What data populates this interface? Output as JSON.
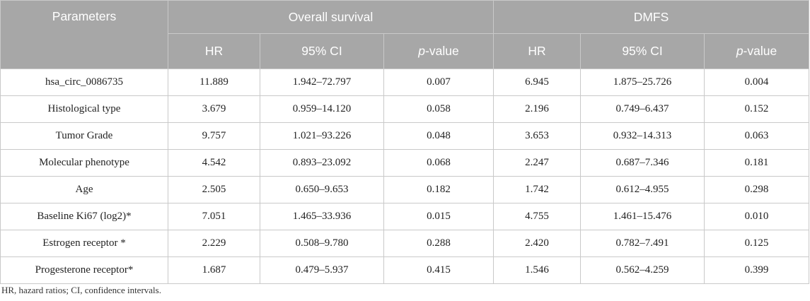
{
  "header": {
    "parameters": "Parameters",
    "group1": "Overall survival",
    "group2": "DMFS",
    "sub": {
      "hr": "HR",
      "ci": "95% CI",
      "p_italic": "p",
      "p_rest": "-value"
    }
  },
  "rows": [
    {
      "param": "hsa_circ_0086735",
      "os_hr": "11.889",
      "os_ci": "1.942–72.797",
      "os_p": "0.007",
      "d_hr": "6.945",
      "d_ci": "1.875–25.726",
      "d_p": "0.004"
    },
    {
      "param": "Histological type",
      "os_hr": "3.679",
      "os_ci": "0.959–14.120",
      "os_p": "0.058",
      "d_hr": "2.196",
      "d_ci": "0.749–6.437",
      "d_p": "0.152"
    },
    {
      "param": "Tumor Grade",
      "os_hr": "9.757",
      "os_ci": "1.021–93.226",
      "os_p": "0.048",
      "d_hr": "3.653",
      "d_ci": "0.932–14.313",
      "d_p": "0.063"
    },
    {
      "param": "Molecular phenotype",
      "os_hr": "4.542",
      "os_ci": "0.893–23.092",
      "os_p": "0.068",
      "d_hr": "2.247",
      "d_ci": "0.687–7.346",
      "d_p": "0.181"
    },
    {
      "param": "Age",
      "os_hr": "2.505",
      "os_ci": "0.650–9.653",
      "os_p": "0.182",
      "d_hr": "1.742",
      "d_ci": "0.612–4.955",
      "d_p": "0.298"
    },
    {
      "param": "Baseline Ki67 (log2)*",
      "os_hr": "7.051",
      "os_ci": "1.465–33.936",
      "os_p": "0.015",
      "d_hr": "4.755",
      "d_ci": "1.461–15.476",
      "d_p": "0.010"
    },
    {
      "param": "Estrogen receptor *",
      "os_hr": "2.229",
      "os_ci": "0.508–9.780",
      "os_p": "0.288",
      "d_hr": "2.420",
      "d_ci": "0.782–7.491",
      "d_p": "0.125"
    },
    {
      "param": "Progesterone receptor*",
      "os_hr": "1.687",
      "os_ci": "0.479–5.937",
      "os_p": "0.415",
      "d_hr": "1.546",
      "d_ci": "0.562–4.259",
      "d_p": "0.399"
    }
  ],
  "footnote": "HR, hazard ratios; CI, confidence intervals.",
  "colors": {
    "header_bg": "#a7a7a7",
    "header_text": "#ffffff",
    "border": "#c9c9c9"
  }
}
